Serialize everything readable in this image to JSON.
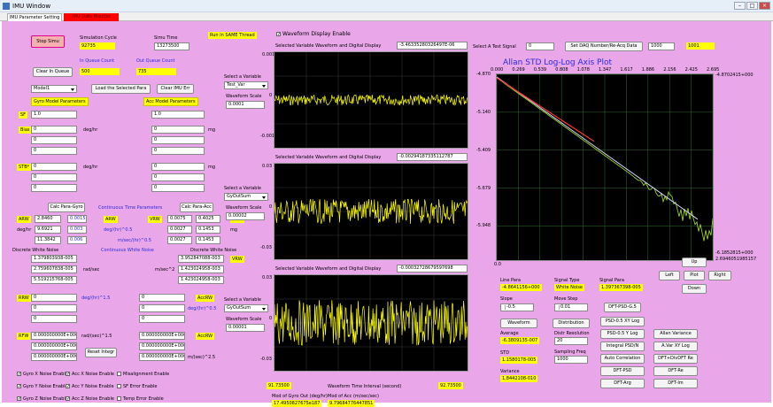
{
  "window": {
    "title": "IMU Window"
  },
  "tabs": [
    {
      "label": "IMU Parameter Setting"
    },
    {
      "label": "IMU Data Monitor Display"
    }
  ],
  "left": {
    "stop_btn": "Stop Simu",
    "sim_cycle_label": "Simulation Cycle",
    "sim_cycle": "92735",
    "simu_time_label": "Simu Time",
    "simu_time": "13273500",
    "clear_queue_btn": "Clear In Queue",
    "in_queue_label": "In Queue Count",
    "in_queue": "500",
    "out_queue_label": "Out Queue Count",
    "out_queue": "735",
    "model_select": "Model1",
    "load_btn": "Load the Selected Para",
    "clear_imu_btn": "Clear IMU Err",
    "gyro_params_label": "Gyro Model Parameters",
    "acc_params_label": "Acc Model Parameters",
    "sf_label": "SF",
    "sf": "1.0",
    "acc_sf": "1.0",
    "bias_label": "Bias",
    "bias": [
      "0",
      "0",
      "0"
    ],
    "acc_bias": [
      "0",
      "0",
      "0"
    ],
    "bias_unit": "deg/hr",
    "acc_bias_unit": "mg",
    "stb_label": "STB*",
    "stb": [
      "0",
      "0",
      "0"
    ],
    "acc_stb": [
      "0",
      "0",
      "0"
    ],
    "stb_unit": "deg/hr",
    "acc_stb_unit": "mg",
    "calc_gyro_btn": "Calc Para-Gyro",
    "cont_time_label": "Continuous Time Parameters",
    "calc_acc_btn": "Calc Para-Acc",
    "arw_label": "ARW",
    "arw": [
      "2.8460",
      "9.6921",
      "11.3842"
    ],
    "arw_b": [
      "0.0015",
      "0.003",
      "0.006"
    ],
    "arw_unit1": "deg/hr",
    "arw_unit2": "deg/(hr)^0.5",
    "arw_right": "ARW",
    "vrw_label": "VRW",
    "vrw": [
      "0.0075",
      "0.0027",
      "0.0027"
    ],
    "vrw_b": [
      "0.4025",
      "0.1453",
      "0.1453"
    ],
    "vrw_unit1": "mg",
    "vrw_unit2": "m/sec/(hr)^0.5",
    "disc_white_label": "Discrete White Noise",
    "cont_white_label": "Continuous White Noise",
    "disc_white_label2": "Discrete White Noise",
    "dwn_gyro": [
      "1.379803938-005",
      "2.759607838-005",
      "5.519215768-005"
    ],
    "dwn_gyro_unit": "rad/sec",
    "dwn_acc": [
      "3.952847088-003",
      "1.423024958-003",
      "1.423024958-003"
    ],
    "dwn_acc_unit": "m/sec^2",
    "rrw_label": "RRW",
    "rrw": [
      "0",
      "0",
      "0"
    ],
    "rrw_unit": "deg/(hr)^1.5",
    "rrw_unit2": "deg/(hr)^0.5",
    "accrw_label": "AccRW",
    "accrw": [
      "0",
      "0",
      "0"
    ],
    "accrw_unit": "m/(hr)^0.5",
    "rfw_label": "RFW",
    "rfw": [
      "0.000000000E+000",
      "0.000000000E+000",
      "0.000000000E+000"
    ],
    "rfw_unit": "rad/(sec)^1.5",
    "acc_rfw": [
      "0.000000000E+000",
      "0.000000000E+000",
      "0.000000000E+000"
    ],
    "acc_rfw_unit": "m/(sec)^2.5",
    "reset_btn": "Reset Integr",
    "checks": [
      {
        "label": "Gyro X Noise Enable",
        "checked": true
      },
      {
        "label": "Acc X Noise Enable",
        "checked": true
      },
      {
        "label": "Misalignment Enable",
        "checked": false
      },
      {
        "label": "Gyro Y Noise Enable",
        "checked": true
      },
      {
        "label": "Acc Y Noise Enable",
        "checked": true
      },
      {
        "label": "SF Error Enable",
        "checked": false
      },
      {
        "label": "Gyro Z Noise Enable",
        "checked": true
      },
      {
        "label": "Acc Z Noise Enable",
        "checked": true
      },
      {
        "label": "Temp Error Enable",
        "checked": false
      }
    ]
  },
  "middle": {
    "run_thread_label": "Run In SAME Thread",
    "wave_enable_label": "Waveform Display Enable",
    "plot_title": "Selected Variable Waveform and Digital Display",
    "plots": [
      {
        "value": "-3.46335280326497E-06",
        "ytop": "0.001",
        "ymid": "0",
        "ybot": "-0.001",
        "var": "Test_Var",
        "scale": "0.0001"
      },
      {
        "value": "-0.00294187335112787",
        "ytop": "0.03",
        "ymid": "0",
        "ybot": "-0.03",
        "var": "GyOutSum",
        "scale": "0.00002"
      },
      {
        "value": "-0.00032728679597698",
        "ytop": "0.03",
        "ymid": "0",
        "ybot": "-0.03",
        "var": "GyOutSum",
        "scale": "0.00001"
      }
    ],
    "select_var_label": "Select a Variable",
    "wave_scale_label": "Waveform Scale",
    "x_start": "91.73500",
    "x_end": "92.73500",
    "x_label": "Waveform Time Interval (second)",
    "mod_gyro_label": "Mod of Gyro Out (deg/hr)",
    "mod_gyro": "17.4950827675e187",
    "mod_acc_label": "Mod of Acc (m/sec/sec)",
    "mod_acc": "9.79684776447851"
  },
  "right": {
    "select_sig_label": "Select A Test Signal",
    "select_sig": "0",
    "set_daq_btn": "Set DAQ Number/Re-Acq Data",
    "daq": "1000",
    "daq2": "1001",
    "allan_title": "Allan STD Log-Log Axis Plot",
    "x_ticks": [
      "0.000",
      "0.269",
      "0.539",
      "0.808",
      "1.078",
      "1.347",
      "1.617",
      "1.886",
      "2.156",
      "2.425",
      "2.695"
    ],
    "y_ticks": [
      "-4.870",
      "-5.140",
      "-5.409",
      "-5.679",
      "-5.948"
    ],
    "y_top_right": "-4.8702415+000",
    "y_bot_right": "-6.1852815+000",
    "x_right": "2.6946051985157",
    "x_origin": "0.0",
    "line_para_label": "Line Para",
    "line_para": "-4.8641156+000",
    "sig_type_label": "Signal Type",
    "sig_type": "White Noise",
    "sig_para_label": "Signal Para",
    "sig_para": "1.397367398-005",
    "slope_label": "Slope",
    "slope": "-0.5",
    "move_step_label": "Move Step",
    "move_step": "0.01",
    "dft_psd_g": "DFT-PSD-G.5",
    "waveform_btn": "Waveform",
    "dist_btn": "Distribution",
    "psd_xy_btn": "PSD-0.5 XY Log",
    "average_label": "Average",
    "average": "-6.3809135-007",
    "distr_res_label": "Distr Resolution",
    "distr_res": "20",
    "psd_y_btn": "PSD-0.5 Y Log",
    "allan_var_btn": "Allan Variance",
    "integral_btn": "Integral PSD/N",
    "avar_xy_btn": "A.Var XY Log",
    "std_label": "STD",
    "std": "1.1580178-005",
    "samp_freq_label": "Sampling Freq",
    "samp_freq": "1000",
    "autocorr_btn": "Auto Correlation",
    "dft_dft_btn": "DFT+DivDFT Re",
    "variance_label": "Variance",
    "variance": "1.8442108-010",
    "dft_psd_btn": "DFT-PSD",
    "dft_re_btn": "DFT-Re",
    "dft_arg_btn": "DFT-Arg",
    "dft_im_btn": "DFT-Im",
    "up_btn": "Up",
    "left_btn": "Left",
    "plot_btn": "Plot",
    "right_btn": "Right",
    "down_btn": "Down"
  },
  "colors": {
    "panel": "#e9a6e9",
    "yellow": "#ffff00",
    "red_tab": "#ff0000",
    "plot_bg": "#000000",
    "trace": "#ffff00",
    "allan_title": "#2b2be0"
  }
}
